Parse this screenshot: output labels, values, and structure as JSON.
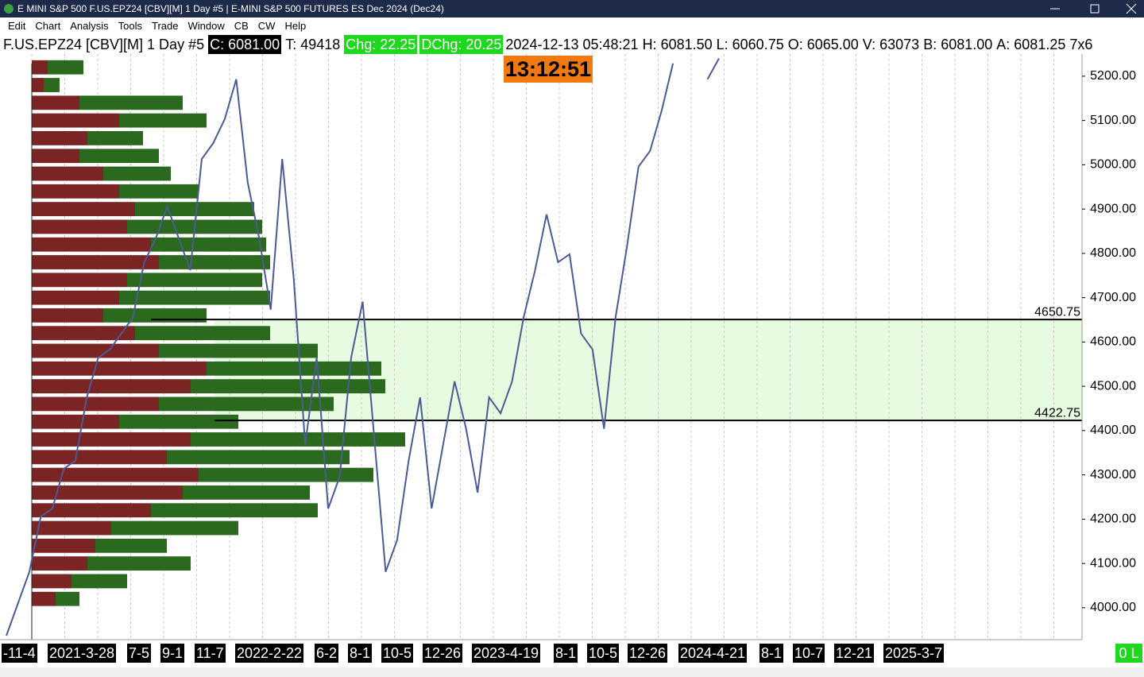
{
  "window": {
    "title": "E MINI S&P 500 F.US.EPZ24 [CBV][M]  1 Day  #5 | E-MINI S&P 500 FUTURES ES Dec 2024 (Dec24)"
  },
  "menu": [
    "Edit",
    "Chart",
    "Analysis",
    "Tools",
    "Trade",
    "Window",
    "CB",
    "CW",
    "Help"
  ],
  "info_bar": [
    "F.US.EPZ24 [CBV][M]",
    "1 Day",
    "#5",
    "C: 6081.00",
    "T: 49418",
    "Chg: 22.25",
    "DChg: 20.25",
    "2024-12-13 05:48:21",
    "H: 6081.50",
    "L: 6060.75",
    "O: 6065.00",
    "V: 63073",
    "B: 6081.00",
    "A: 6081.25",
    "7x6"
  ],
  "clock": "13:12:51",
  "status": "0 L",
  "chart_data": {
    "type": "line",
    "series": [
      {
        "color": "#4b5a96",
        "values": [
          3937,
          4009,
          4081,
          4206,
          4224,
          4314,
          4332,
          4475,
          4565,
          4583,
          4619,
          4655,
          4780,
          4834,
          4906,
          4834,
          4762,
          5013,
          5049,
          5103,
          5193,
          4960,
          4834,
          4673,
          5013,
          4744,
          4368,
          4565,
          4224,
          4296,
          4565,
          4691,
          4386,
          4081,
          4153,
          4332,
          4475,
          4224,
          4368,
          4511,
          4404,
          4260,
          4475,
          4439,
          4511,
          4655,
          4762,
          4888,
          4780,
          4798,
          4619,
          4583,
          4404,
          4655,
          4816,
          4996,
          5031,
          5121,
          5229,
          null,
          null,
          5193,
          5240
        ]
      }
    ],
    "date_labels": [
      "-11-4",
      "2021-3-28",
      "7-5",
      "9-1",
      "11-7",
      "2022-2-22",
      "6-2",
      "8-1",
      "10-5",
      "12-26",
      "2023-4-19",
      "8-1",
      "10-5",
      "12-26",
      "2024-4-21",
      "8-1",
      "10-7",
      "12-21",
      "2025-3-7"
    ],
    "ylim": [
      3928,
      5250
    ],
    "yticks": [
      {
        "value": 4000,
        "label": "4000.00"
      },
      {
        "value": 4100,
        "label": "4100.00"
      },
      {
        "value": 4200,
        "label": "4200.00"
      },
      {
        "value": 4300,
        "label": "4300.00"
      },
      {
        "value": 4400,
        "label": "4400.00"
      },
      {
        "value": 4500,
        "label": "4500.00"
      },
      {
        "value": 4600,
        "label": "4600.00"
      },
      {
        "value": 4700,
        "label": "4700.00"
      },
      {
        "value": 4800,
        "label": "4800.00"
      },
      {
        "value": 4900,
        "label": "4900.00"
      },
      {
        "value": 5000,
        "label": "5000.00"
      },
      {
        "value": 5100,
        "label": "5100.00"
      },
      {
        "value": 5200,
        "label": "5200.00"
      }
    ],
    "levels": [
      4650.75,
      4422.75
    ],
    "zone_color": "#e6fbe0",
    "profile": {
      "prices": [
        5220,
        5180,
        5140,
        5100,
        5060,
        5020,
        4980,
        4940,
        4900,
        4860,
        4820,
        4780,
        4740,
        4700,
        4660,
        4620,
        4580,
        4540,
        4500,
        4460,
        4420,
        4380,
        4340,
        4300,
        4260,
        4220,
        4180,
        4140,
        4100,
        4060,
        4020
      ],
      "sell": {
        "color": "#7a2424",
        "values": [
          20,
          15,
          60,
          110,
          70,
          60,
          90,
          110,
          130,
          120,
          150,
          160,
          120,
          110,
          90,
          130,
          160,
          220,
          200,
          160,
          110,
          200,
          170,
          210,
          190,
          150,
          100,
          80,
          70,
          50,
          30
        ]
      },
      "buy": {
        "color": "#2b6a1e",
        "values": [
          45,
          20,
          130,
          110,
          70,
          100,
          85,
          100,
          150,
          170,
          145,
          140,
          170,
          190,
          130,
          170,
          200,
          220,
          245,
          220,
          150,
          270,
          230,
          220,
          160,
          210,
          160,
          90,
          130,
          70,
          30
        ]
      }
    }
  }
}
